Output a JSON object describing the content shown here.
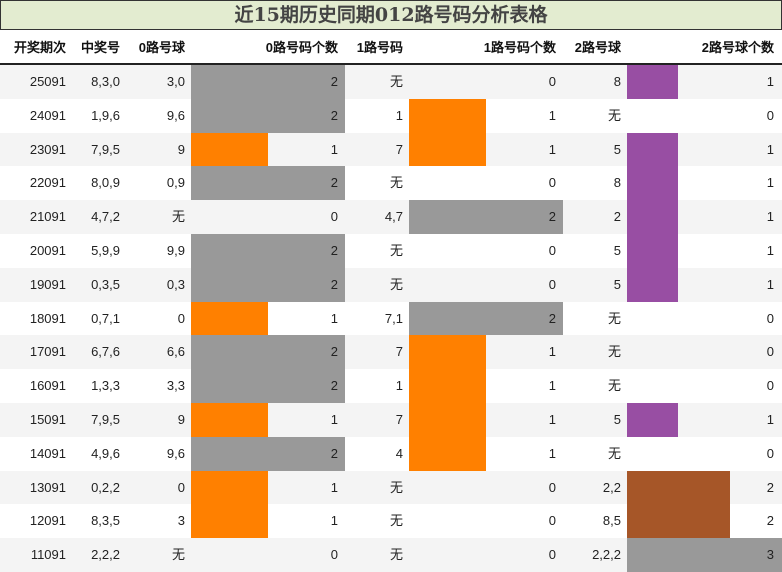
{
  "title": "近15期历史同期012路号码分析表格",
  "headers": [
    "开奖期次",
    "中奖号",
    "0路号球",
    "0路号码个数",
    "1路号码",
    "1路号码个数",
    "2路号球",
    "2路号球个数"
  ],
  "colors": {
    "title_bg": "#e3ecd0",
    "count_0": "transparent",
    "count_1_orange": "#ff8000",
    "count_2_gray": "#999999",
    "route2_count_1_purple": "#984ea3",
    "route2_count_2_brown": "#a65628",
    "route2_count_3_gray": "#999999"
  },
  "rows": [
    {
      "period": "25091",
      "number": "8,3,0",
      "r0": "3,0",
      "r0_count": 2,
      "r1": "无",
      "r1_count": 0,
      "r2": "8",
      "r2_count": 1
    },
    {
      "period": "24091",
      "number": "1,9,6",
      "r0": "9,6",
      "r0_count": 2,
      "r1": "1",
      "r1_count": 1,
      "r2": "无",
      "r2_count": 0
    },
    {
      "period": "23091",
      "number": "7,9,5",
      "r0": "9",
      "r0_count": 1,
      "r1": "7",
      "r1_count": 1,
      "r2": "5",
      "r2_count": 1
    },
    {
      "period": "22091",
      "number": "8,0,9",
      "r0": "0,9",
      "r0_count": 2,
      "r1": "无",
      "r1_count": 0,
      "r2": "8",
      "r2_count": 1
    },
    {
      "period": "21091",
      "number": "4,7,2",
      "r0": "无",
      "r0_count": 0,
      "r1": "4,7",
      "r1_count": 2,
      "r2": "2",
      "r2_count": 1
    },
    {
      "period": "20091",
      "number": "5,9,9",
      "r0": "9,9",
      "r0_count": 2,
      "r1": "无",
      "r1_count": 0,
      "r2": "5",
      "r2_count": 1
    },
    {
      "period": "19091",
      "number": "0,3,5",
      "r0": "0,3",
      "r0_count": 2,
      "r1": "无",
      "r1_count": 0,
      "r2": "5",
      "r2_count": 1
    },
    {
      "period": "18091",
      "number": "0,7,1",
      "r0": "0",
      "r0_count": 1,
      "r1": "7,1",
      "r1_count": 2,
      "r2": "无",
      "r2_count": 0
    },
    {
      "period": "17091",
      "number": "6,7,6",
      "r0": "6,6",
      "r0_count": 2,
      "r1": "7",
      "r1_count": 1,
      "r2": "无",
      "r2_count": 0
    },
    {
      "period": "16091",
      "number": "1,3,3",
      "r0": "3,3",
      "r0_count": 2,
      "r1": "1",
      "r1_count": 1,
      "r2": "无",
      "r2_count": 0
    },
    {
      "period": "15091",
      "number": "7,9,5",
      "r0": "9",
      "r0_count": 1,
      "r1": "7",
      "r1_count": 1,
      "r2": "5",
      "r2_count": 1
    },
    {
      "period": "14091",
      "number": "4,9,6",
      "r0": "9,6",
      "r0_count": 2,
      "r1": "4",
      "r1_count": 1,
      "r2": "无",
      "r2_count": 0
    },
    {
      "period": "13091",
      "number": "0,2,2",
      "r0": "0",
      "r0_count": 1,
      "r1": "无",
      "r1_count": 0,
      "r2": "2,2",
      "r2_count": 2
    },
    {
      "period": "12091",
      "number": "8,3,5",
      "r0": "3",
      "r0_count": 1,
      "r1": "无",
      "r1_count": 0,
      "r2": "8,5",
      "r2_count": 2
    },
    {
      "period": "11091",
      "number": "2,2,2",
      "r0": "无",
      "r0_count": 0,
      "r1": "无",
      "r1_count": 0,
      "r2": "2,2,2",
      "r2_count": 3
    }
  ],
  "chart_data": {
    "type": "table",
    "title": "近15期历史同期012路号码分析表格",
    "columns": [
      "开奖期次",
      "中奖号",
      "0路号球",
      "0路号码个数",
      "1路号码",
      "1路号码个数",
      "2路号球",
      "2路号球个数"
    ],
    "categories": [
      "25091",
      "24091",
      "23091",
      "22091",
      "21091",
      "20091",
      "19091",
      "18091",
      "17091",
      "16091",
      "15091",
      "14091",
      "13091",
      "12091",
      "11091"
    ],
    "series": [
      {
        "name": "0路号码个数",
        "values": [
          2,
          2,
          1,
          2,
          0,
          2,
          2,
          1,
          2,
          2,
          1,
          2,
          1,
          1,
          0
        ]
      },
      {
        "name": "1路号码个数",
        "values": [
          0,
          1,
          1,
          0,
          2,
          0,
          0,
          2,
          1,
          1,
          1,
          1,
          0,
          0,
          0
        ]
      },
      {
        "name": "2路号球个数",
        "values": [
          1,
          0,
          1,
          1,
          1,
          1,
          1,
          0,
          0,
          0,
          1,
          0,
          2,
          2,
          3
        ]
      }
    ]
  }
}
